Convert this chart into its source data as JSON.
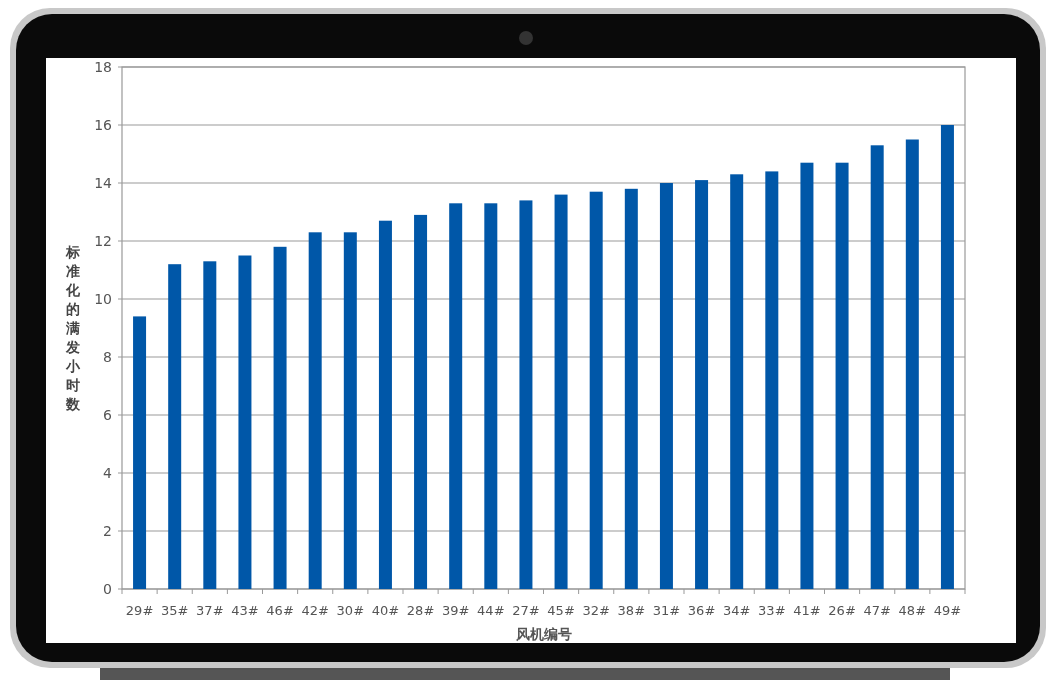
{
  "chart_data": {
    "type": "bar",
    "xlabel": "风机编号",
    "ylabel": "标准化的满发小时数",
    "categories": [
      "29#",
      "35#",
      "37#",
      "43#",
      "46#",
      "42#",
      "30#",
      "40#",
      "28#",
      "39#",
      "44#",
      "27#",
      "45#",
      "32#",
      "38#",
      "31#",
      "36#",
      "34#",
      "33#",
      "41#",
      "26#",
      "47#",
      "48#",
      "49#"
    ],
    "values": [
      9.4,
      11.2,
      11.3,
      11.5,
      11.8,
      12.3,
      12.3,
      12.7,
      12.9,
      13.3,
      13.3,
      13.4,
      13.6,
      13.7,
      13.8,
      14.0,
      14.1,
      14.3,
      14.4,
      14.7,
      14.7,
      15.3,
      15.5,
      16.0
    ],
    "color": "#0057a8",
    "ylim": [
      0,
      18
    ],
    "yticks": [
      0,
      2,
      4,
      6,
      8,
      10,
      12,
      14,
      16,
      18
    ],
    "grid": "y"
  }
}
